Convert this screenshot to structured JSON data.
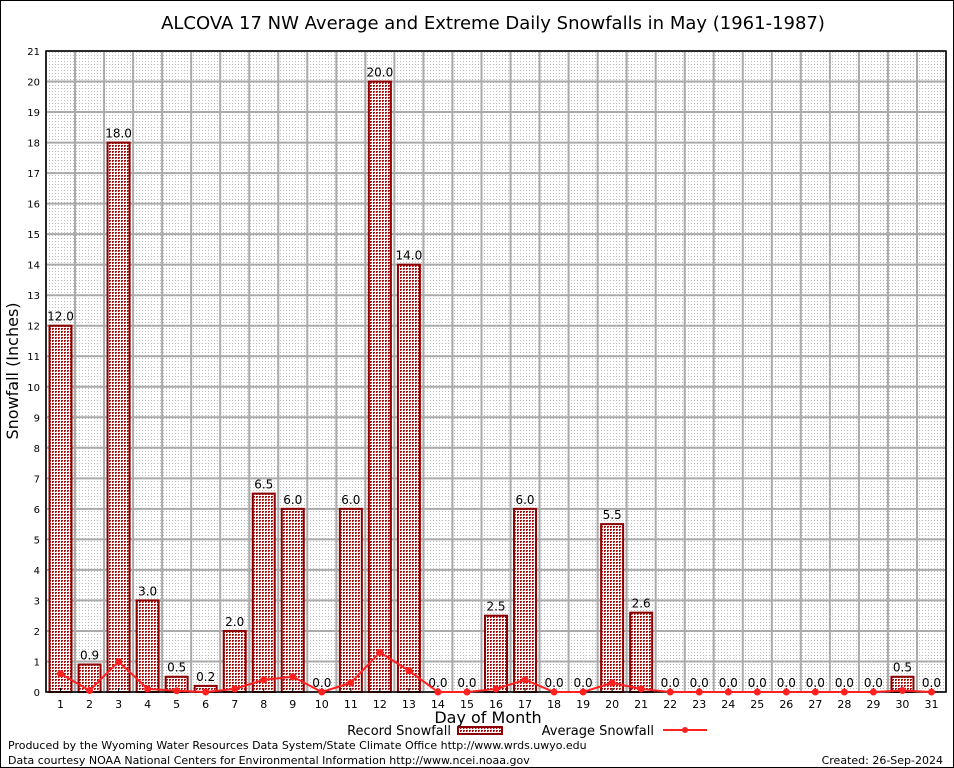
{
  "chart_data": {
    "type": "bar",
    "title": "ALCOVA 17 NW Average and Extreme Daily Snowfalls in May (1961-1987)",
    "xlabel": "Day of Month",
    "ylabel": "Snowfall (Inches)",
    "ylim": [
      0,
      21
    ],
    "grid": true,
    "legend": "bottom",
    "categories": [
      "1",
      "2",
      "3",
      "4",
      "5",
      "6",
      "7",
      "8",
      "9",
      "10",
      "11",
      "12",
      "13",
      "14",
      "15",
      "16",
      "17",
      "18",
      "19",
      "20",
      "21",
      "22",
      "23",
      "24",
      "25",
      "26",
      "27",
      "28",
      "29",
      "30",
      "31"
    ],
    "series": [
      {
        "name": "Record Snowfall",
        "type": "bar",
        "color": "#8b0000",
        "values": [
          12.0,
          0.9,
          18.0,
          3.0,
          0.5,
          0.2,
          2.0,
          6.5,
          6.0,
          0.0,
          6.0,
          20.0,
          14.0,
          0.0,
          0.0,
          2.5,
          6.0,
          0.0,
          0.0,
          5.5,
          2.6,
          0.0,
          0.0,
          0.0,
          0.0,
          0.0,
          0.0,
          0.0,
          0.0,
          0.5,
          0.0
        ],
        "labels": [
          "12.0",
          "0.9",
          "18.0",
          "3.0",
          "0.5",
          "0.2",
          "2.0",
          "6.5",
          "6.0",
          "0.0",
          "6.0",
          "20.0",
          "14.0",
          "0.0",
          "0.0",
          "2.5",
          "6.0",
          "0.0",
          "0.0",
          "5.5",
          "2.6",
          "0.0",
          "0.0",
          "0.0",
          "0.0",
          "0.0",
          "0.0",
          "0.0",
          "0.0",
          "0.5",
          "0.0"
        ]
      },
      {
        "name": "Average Snowfall",
        "type": "line",
        "color": "#ff2020",
        "values": [
          0.6,
          0.05,
          1.0,
          0.1,
          0.04,
          0.0,
          0.1,
          0.4,
          0.5,
          0.0,
          0.3,
          1.3,
          0.7,
          0.0,
          0.0,
          0.1,
          0.4,
          0.0,
          0.0,
          0.3,
          0.1,
          0.0,
          0.0,
          0.0,
          0.0,
          0.0,
          0.0,
          0.0,
          0.0,
          0.05,
          0.0
        ]
      }
    ],
    "yticks": [
      "0",
      "1",
      "2",
      "3",
      "4",
      "5",
      "6",
      "7",
      "8",
      "9",
      "10",
      "11",
      "12",
      "13",
      "14",
      "15",
      "16",
      "17",
      "18",
      "19",
      "20",
      "21"
    ]
  },
  "footer": {
    "line1": "Produced by the Wyoming Water Resources Data System/State Climate Office http://www.wrds.uwyo.edu",
    "line2": "Data courtesy NOAA National Centers for Environmental Information http://www.ncei.noaa.gov",
    "created": "Created:  26-Sep-2024"
  }
}
